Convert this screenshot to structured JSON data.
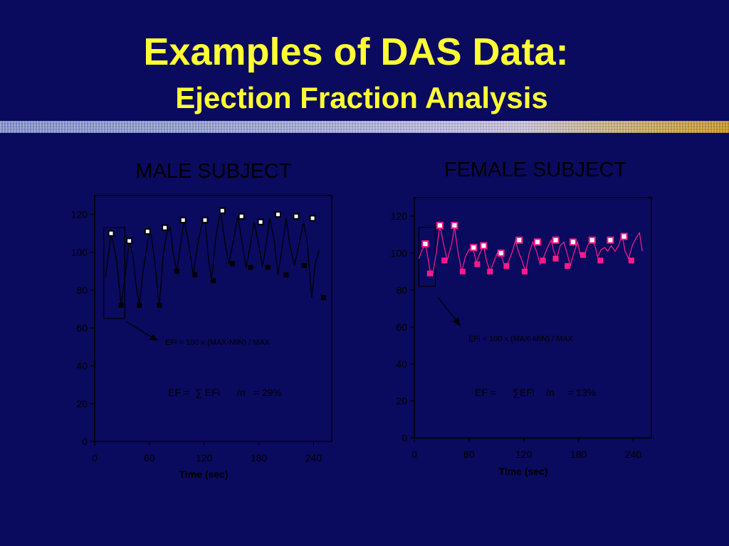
{
  "slide": {
    "title": "Examples of DAS Data:",
    "subtitle": "Ejection Fraction Analysis"
  },
  "colors": {
    "background": "#0a0a5e",
    "title_text": "#ffff33",
    "male_series": "#000000",
    "female_series": "#ff1a8c",
    "marker_fill": "#ffffff"
  },
  "chart_data": [
    {
      "type": "line",
      "title": "MALE SUBJECT",
      "xlabel": "Time (sec)",
      "ylabel": "",
      "xlim": [
        0,
        260
      ],
      "ylim": [
        0,
        130
      ],
      "xticks": [
        "0",
        "60",
        "120",
        "180",
        "240"
      ],
      "xtick_values": [
        0,
        60,
        120,
        180,
        240
      ],
      "yticks": [
        "0",
        "20",
        "40",
        "60",
        "80",
        "100",
        "120"
      ],
      "ytick_values": [
        0,
        20,
        40,
        60,
        80,
        100,
        120
      ],
      "grid": false,
      "line_color": "#000000",
      "trace": [
        [
          12,
          87
        ],
        [
          18,
          110
        ],
        [
          24,
          96
        ],
        [
          29,
          72
        ],
        [
          34,
          90
        ],
        [
          38,
          106
        ],
        [
          42,
          98
        ],
        [
          45,
          84
        ],
        [
          49,
          72
        ],
        [
          53,
          90
        ],
        [
          58,
          105
        ],
        [
          61,
          112
        ],
        [
          66,
          95
        ],
        [
          70,
          75
        ],
        [
          71,
          72
        ],
        [
          75,
          98
        ],
        [
          79,
          110
        ],
        [
          83,
          113
        ],
        [
          86,
          100
        ],
        [
          90,
          90
        ],
        [
          94,
          103
        ],
        [
          98,
          117
        ],
        [
          103,
          105
        ],
        [
          108,
          88
        ],
        [
          113,
          104
        ],
        [
          117,
          114
        ],
        [
          121,
          118
        ],
        [
          124,
          100
        ],
        [
          128,
          85
        ],
        [
          133,
          108
        ],
        [
          138,
          122
        ],
        [
          143,
          105
        ],
        [
          147,
          94
        ],
        [
          152,
          106
        ],
        [
          157,
          119
        ],
        [
          162,
          104
        ],
        [
          166,
          92
        ],
        [
          170,
          102
        ],
        [
          175,
          116
        ],
        [
          180,
          104
        ],
        [
          184,
          92
        ],
        [
          188,
          104
        ],
        [
          192,
          118
        ],
        [
          197,
          106
        ],
        [
          201,
          88
        ],
        [
          206,
          104
        ],
        [
          210,
          118
        ],
        [
          214,
          104
        ],
        [
          219,
          93
        ],
        [
          224,
          104
        ],
        [
          229,
          116
        ],
        [
          233,
          106
        ],
        [
          238,
          76
        ],
        [
          242,
          94
        ],
        [
          246,
          101
        ]
      ],
      "max_points": [
        [
          18,
          110
        ],
        [
          38,
          106
        ],
        [
          58,
          111
        ],
        [
          77,
          113
        ],
        [
          97,
          117
        ],
        [
          121,
          117
        ],
        [
          140,
          122
        ],
        [
          161,
          119
        ],
        [
          182,
          116
        ],
        [
          201,
          120
        ],
        [
          221,
          119
        ],
        [
          239,
          118
        ]
      ],
      "min_points": [
        [
          29,
          72
        ],
        [
          49,
          72
        ],
        [
          71,
          72
        ],
        [
          90,
          90
        ],
        [
          110,
          88
        ],
        [
          130,
          85
        ],
        [
          151,
          94
        ],
        [
          171,
          92
        ],
        [
          190,
          92
        ],
        [
          210,
          88
        ],
        [
          230,
          93
        ],
        [
          251,
          76
        ]
      ],
      "box": {
        "x": [
          10,
          33
        ],
        "y": [
          65,
          113
        ]
      },
      "annotations": [
        "EFi = 100 x (MAX-MIN) / MAX",
        "EF =",
        "∑ EFi",
        "/n",
        "= 29%"
      ]
    },
    {
      "type": "line",
      "title": "FEMALE SUBJECT",
      "xlabel": "Time (sec)",
      "ylabel": "",
      "xlim": [
        0,
        260
      ],
      "ylim": [
        0,
        130
      ],
      "xticks": [
        "0",
        "60",
        "120",
        "180",
        "240"
      ],
      "xtick_values": [
        0,
        60,
        120,
        180,
        240
      ],
      "yticks": [
        "0",
        "20",
        "40",
        "60",
        "80",
        "100",
        "120"
      ],
      "ytick_values": [
        0,
        20,
        40,
        60,
        80,
        100,
        120
      ],
      "grid": false,
      "line_color": "#ff1a8c",
      "trace": [
        [
          5,
          97
        ],
        [
          8,
          101
        ],
        [
          12,
          105
        ],
        [
          14,
          100
        ],
        [
          17,
          91
        ],
        [
          20,
          88
        ],
        [
          24,
          100
        ],
        [
          28,
          115
        ],
        [
          32,
          105
        ],
        [
          36,
          96
        ],
        [
          41,
          105
        ],
        [
          44,
          114
        ],
        [
          48,
          100
        ],
        [
          52,
          90
        ],
        [
          56,
          98
        ],
        [
          60,
          102
        ],
        [
          64,
          103
        ],
        [
          68,
          95
        ],
        [
          72,
          100
        ],
        [
          76,
          104
        ],
        [
          79,
          96
        ],
        [
          83,
          90
        ],
        [
          87,
          95
        ],
        [
          91,
          100
        ],
        [
          95,
          99
        ],
        [
          99,
          93
        ],
        [
          103,
          95
        ],
        [
          107,
          100
        ],
        [
          111,
          107
        ],
        [
          114,
          101
        ],
        [
          118,
          96
        ],
        [
          122,
          90
        ],
        [
          126,
          100
        ],
        [
          130,
          106
        ],
        [
          134,
          101
        ],
        [
          138,
          94
        ],
        [
          142,
          98
        ],
        [
          146,
          103
        ],
        [
          150,
          107
        ],
        [
          153,
          101
        ],
        [
          156,
          97
        ],
        [
          160,
          104
        ],
        [
          164,
          106
        ],
        [
          168,
          99
        ],
        [
          171,
          93
        ],
        [
          175,
          100
        ],
        [
          179,
          106
        ],
        [
          182,
          99
        ],
        [
          186,
          98
        ],
        [
          190,
          104
        ],
        [
          194,
          107
        ],
        [
          198,
          104
        ],
        [
          201,
          98
        ],
        [
          205,
          102
        ],
        [
          209,
          103
        ],
        [
          212,
          101
        ],
        [
          216,
          104
        ],
        [
          220,
          101
        ],
        [
          224,
          104
        ],
        [
          228,
          110
        ],
        [
          231,
          101
        ],
        [
          235,
          97
        ],
        [
          239,
          104
        ],
        [
          243,
          108
        ],
        [
          247,
          111
        ],
        [
          250,
          101
        ]
      ],
      "max_points": [
        [
          12,
          105
        ],
        [
          28,
          115
        ],
        [
          44,
          115
        ],
        [
          65,
          103
        ],
        [
          76,
          104
        ],
        [
          95,
          100
        ],
        [
          115,
          107
        ],
        [
          135,
          106
        ],
        [
          155,
          107
        ],
        [
          174,
          106
        ],
        [
          195,
          107
        ],
        [
          215,
          107
        ],
        [
          230,
          109
        ]
      ],
      "min_points": [
        [
          17,
          89
        ],
        [
          33,
          96
        ],
        [
          53,
          90
        ],
        [
          69,
          94
        ],
        [
          83,
          90
        ],
        [
          101,
          93
        ],
        [
          121,
          90
        ],
        [
          141,
          96
        ],
        [
          155,
          97
        ],
        [
          168,
          93
        ],
        [
          185,
          99
        ],
        [
          204,
          96
        ],
        [
          238,
          96
        ]
      ],
      "box": {
        "x": [
          5,
          23
        ],
        "y": [
          82,
          114
        ]
      },
      "annotations": [
        "EFi = 100 x (MAX-MIN) / MAX",
        "EF =",
        "∑EFi",
        "/n",
        "= 13%"
      ]
    }
  ]
}
